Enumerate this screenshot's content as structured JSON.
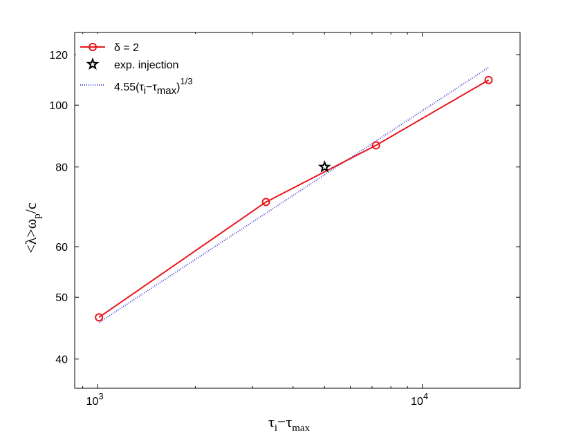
{
  "chart_data": {
    "type": "line",
    "xscale": "log",
    "yscale": "log",
    "xlim": [
      850,
      20000
    ],
    "ylim": [
      36,
      130
    ],
    "xticks": [
      1000,
      10000
    ],
    "xtick_labels": [
      {
        "base": "10",
        "exp": "3"
      },
      {
        "base": "10",
        "exp": "4"
      }
    ],
    "yticks": [
      40,
      50,
      60,
      80,
      100,
      120
    ],
    "ytick_labels": [
      "40",
      "50",
      "60",
      "80",
      "100",
      "120"
    ],
    "xlabel": {
      "a": "τ",
      "a_sub": "i",
      "op": "−τ",
      "b_sub": "max"
    },
    "ylabel": {
      "pre": "<λ>ω",
      "sub": "p",
      "post": "/c"
    },
    "grid": false,
    "legend_position": "top-left",
    "series": [
      {
        "name": "δ = 2",
        "color": "#e8141b",
        "style": "solid-circles",
        "x": [
          1010,
          3300,
          7200,
          16000
        ],
        "y": [
          46.5,
          70.5,
          86.5,
          109.5
        ]
      },
      {
        "name": "exp. injection",
        "color": "#000000",
        "style": "star",
        "x": [
          5000
        ],
        "y": [
          80
        ]
      },
      {
        "name_parts": {
          "pre": "4.55(τ",
          "i_sub": "i",
          "mid": "−τ",
          "max_sub": "max",
          "post": ")",
          "sup": "1/3"
        },
        "color": "#3b3fd6",
        "style": "dotted",
        "coef": 4.55,
        "exponent": 0.3333,
        "x_range": [
          1010,
          16000
        ]
      }
    ]
  }
}
